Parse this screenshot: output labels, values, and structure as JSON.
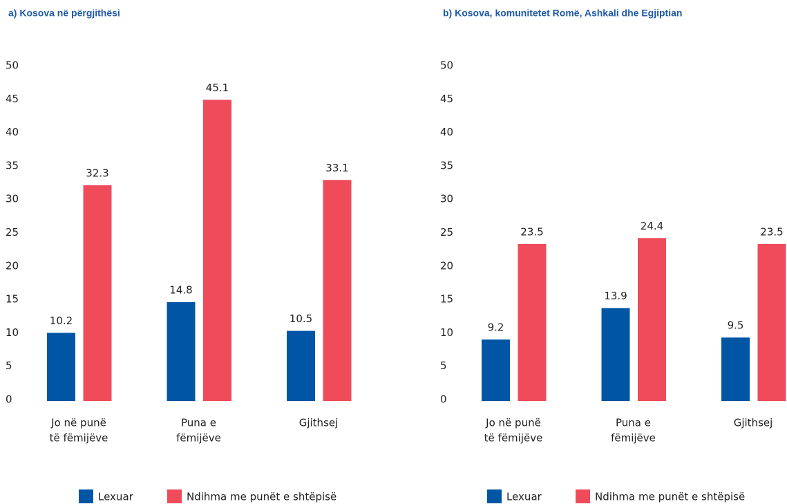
{
  "chart_data": [
    {
      "type": "bar",
      "title": "a) Kosova në përgjithësi",
      "categories": [
        [
          "Jo në punë",
          "të fëmijëve"
        ],
        [
          "Puna e",
          "fëmijëve"
        ],
        [
          "Gjithsej"
        ]
      ],
      "series": [
        {
          "name": "Lexuar",
          "color": "#0055a4",
          "values": [
            10.2,
            14.8,
            10.5
          ]
        },
        {
          "name": "Ndihma me punët e shtëpisë",
          "color": "#f04b5a",
          "values": [
            32.3,
            45.1,
            33.1
          ]
        }
      ],
      "ylim": [
        0,
        50
      ],
      "yticks": [
        0,
        5,
        10,
        15,
        20,
        25,
        30,
        35,
        40,
        45,
        50
      ],
      "grid": false,
      "legend": "bottom"
    },
    {
      "type": "bar",
      "title": "b) Kosova, komunitetet Romë, Ashkali dhe Egjiptian",
      "categories": [
        [
          "Jo në punë",
          "të fëmijëve"
        ],
        [
          "Puna e",
          "fëmijëve"
        ],
        [
          "Gjithsej"
        ]
      ],
      "series": [
        {
          "name": "Lexuar",
          "color": "#0055a4",
          "values": [
            9.2,
            13.9,
            9.5
          ]
        },
        {
          "name": "Ndihma me punët e shtëpisë",
          "color": "#f04b5a",
          "values": [
            23.5,
            24.4,
            23.5
          ]
        }
      ],
      "ylim": [
        0,
        50
      ],
      "yticks": [
        0,
        5,
        10,
        15,
        20,
        25,
        30,
        35,
        40,
        45,
        50
      ],
      "grid": false,
      "legend": "bottom"
    }
  ]
}
